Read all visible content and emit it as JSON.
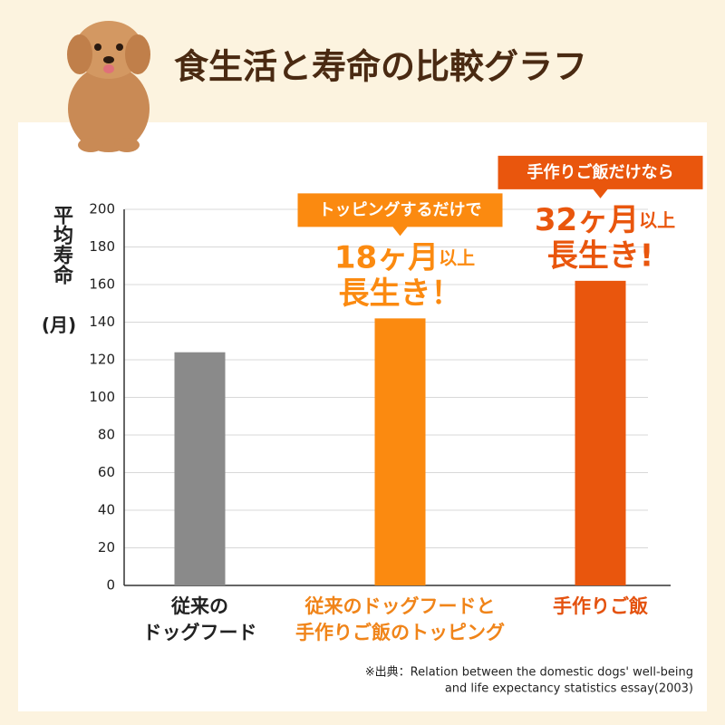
{
  "chart_data": {
    "type": "bar",
    "title": "食生活と寿命の比較グラフ",
    "y_label": [
      "平均寿命",
      "(月)"
    ],
    "categories": [
      [
        "従来の",
        "ドッグフード"
      ],
      [
        "従来のドッグフードと",
        "手作りご飯のトッピング"
      ],
      [
        "手作りご飯"
      ]
    ],
    "values": [
      124,
      142,
      162
    ],
    "colors": [
      "#8a8a8a",
      "#fb8a10",
      "#e9560d"
    ],
    "label_colors": [
      "#222222",
      "#f08419",
      "#e4520f"
    ],
    "ylim": [
      0,
      200
    ],
    "yticks": [
      0,
      20,
      40,
      60,
      80,
      100,
      120,
      140,
      160,
      180,
      200
    ],
    "grid": true,
    "annotations": [
      {
        "bar": 1,
        "box": "トッピングするだけで",
        "big": "18ヶ月",
        "small": "以上",
        "line2": "長生き！"
      },
      {
        "bar": 2,
        "box": "手作りご飯だけなら",
        "big": "32ヶ月",
        "small": "以上",
        "line2": "長生き!"
      }
    ],
    "source": [
      "※出典：Relation between the domestic dogs' well-being",
      "and life expectancy statistics essay(2003)"
    ]
  }
}
